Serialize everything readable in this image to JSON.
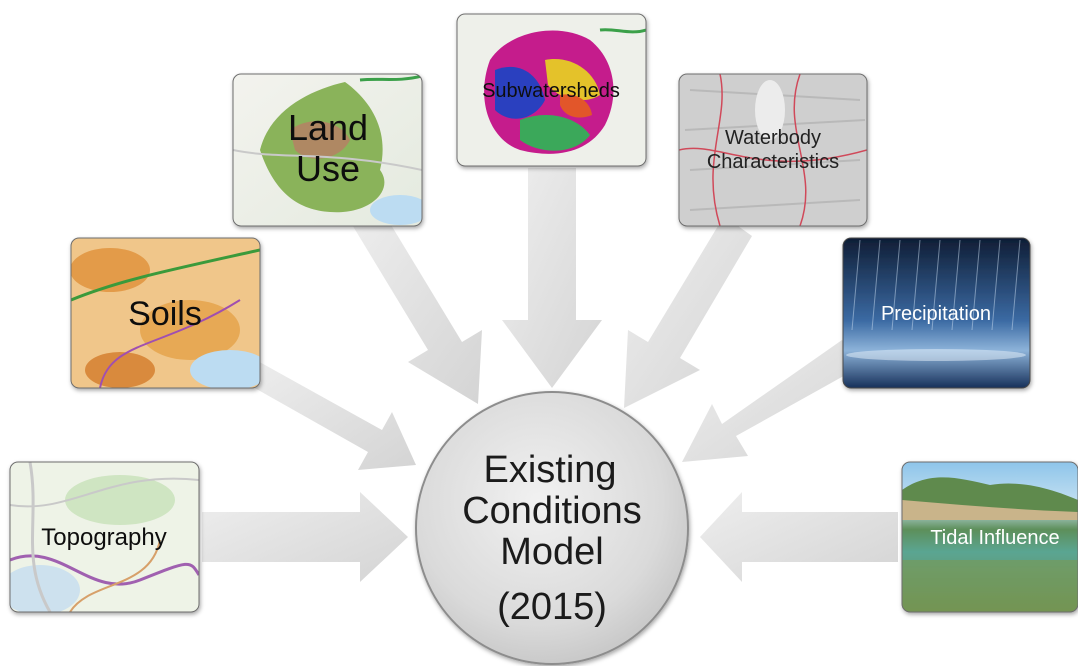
{
  "center": {
    "line1": "Existing",
    "line2": "Conditions",
    "line3": "Model",
    "line4": "(2015)"
  },
  "inputs": {
    "topography": "Topography",
    "soils": "Soils",
    "land_use_1": "Land",
    "land_use_2": "Use",
    "subwatersheds": "Subwatersheds",
    "waterbody_1": "Waterbody",
    "waterbody_2": "Characteristics",
    "precipitation": "Precipitation",
    "tidal": "Tidal Influence"
  },
  "colors": {
    "arrow": "#dcdcdc",
    "circle": "#d9d9d9",
    "sky": "#7fb8e6",
    "sea": "#4f9a8a",
    "rain": "#1d3c6c",
    "map_green": "#8fbf5a",
    "soil_orange": "#e9a84f"
  }
}
